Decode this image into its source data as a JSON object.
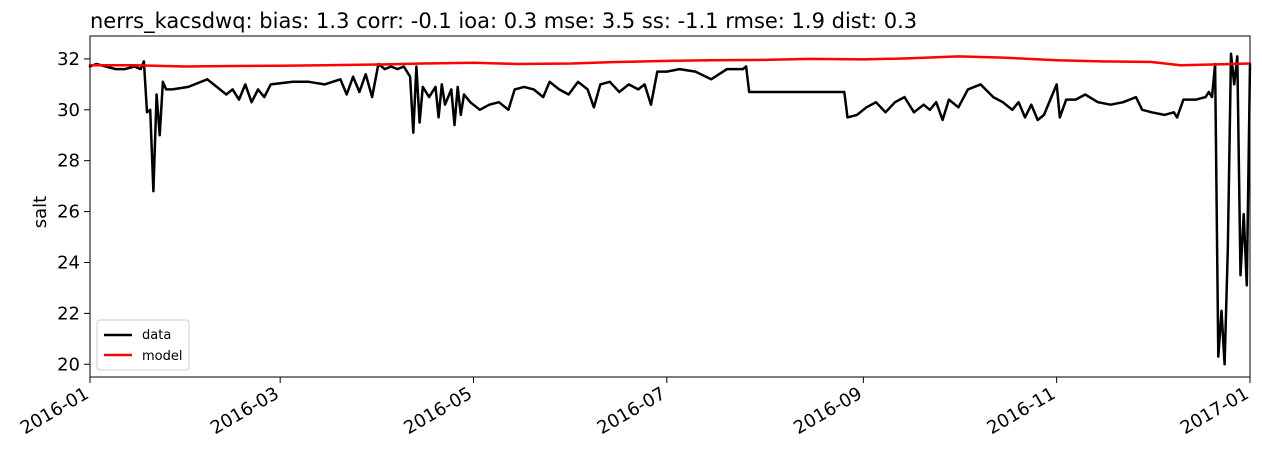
{
  "chart_data": {
    "type": "line",
    "title": "nerrs_kacsdwq: bias: 1.3  corr: -0.1  ioa: 0.3  mse: 3.5  ss: -1.1  rmse: 1.9  dist: 0.3",
    "xlabel": "",
    "ylabel": "salt",
    "xlim": [
      "2016-01-01",
      "2017-01-01"
    ],
    "ylim": [
      19.5,
      32.9
    ],
    "xticks": [
      "2016-01",
      "2016-03",
      "2016-05",
      "2016-07",
      "2016-09",
      "2016-11",
      "2017-01"
    ],
    "yticks": [
      20,
      22,
      24,
      26,
      28,
      30,
      32
    ],
    "grid": false,
    "legend_position": "lower-left",
    "colors": {
      "data": "#000000",
      "model": "#ff0000"
    },
    "series": [
      {
        "name": "data",
        "points": [
          [
            "2016-01-01",
            31.7
          ],
          [
            "2016-01-03",
            31.8
          ],
          [
            "2016-01-06",
            31.7
          ],
          [
            "2016-01-09",
            31.6
          ],
          [
            "2016-01-12",
            31.6
          ],
          [
            "2016-01-15",
            31.7
          ],
          [
            "2016-01-17",
            31.6
          ],
          [
            "2016-01-18",
            31.9
          ],
          [
            "2016-01-19",
            29.9
          ],
          [
            "2016-01-20",
            30.0
          ],
          [
            "2016-01-21",
            26.8
          ],
          [
            "2016-01-22",
            30.6
          ],
          [
            "2016-01-23",
            29.0
          ],
          [
            "2016-01-24",
            31.1
          ],
          [
            "2016-01-25",
            30.8
          ],
          [
            "2016-01-27",
            30.8
          ],
          [
            "2016-02-01",
            30.9
          ],
          [
            "2016-02-03",
            31.0
          ],
          [
            "2016-02-07",
            31.2
          ],
          [
            "2016-02-10",
            30.9
          ],
          [
            "2016-02-13",
            30.6
          ],
          [
            "2016-02-15",
            30.8
          ],
          [
            "2016-02-17",
            30.4
          ],
          [
            "2016-02-19",
            31.0
          ],
          [
            "2016-02-21",
            30.3
          ],
          [
            "2016-02-23",
            30.8
          ],
          [
            "2016-02-25",
            30.5
          ],
          [
            "2016-02-27",
            31.0
          ],
          [
            "2016-03-05",
            31.1
          ],
          [
            "2016-03-10",
            31.1
          ],
          [
            "2016-03-15",
            31.0
          ],
          [
            "2016-03-20",
            31.2
          ],
          [
            "2016-03-22",
            30.6
          ],
          [
            "2016-03-24",
            31.3
          ],
          [
            "2016-03-26",
            30.7
          ],
          [
            "2016-03-28",
            31.4
          ],
          [
            "2016-03-30",
            30.5
          ],
          [
            "2016-04-01",
            31.8
          ],
          [
            "2016-04-03",
            31.6
          ],
          [
            "2016-04-05",
            31.7
          ],
          [
            "2016-04-07",
            31.6
          ],
          [
            "2016-04-09",
            31.7
          ],
          [
            "2016-04-11",
            31.3
          ],
          [
            "2016-04-12",
            29.1
          ],
          [
            "2016-04-13",
            31.7
          ],
          [
            "2016-04-14",
            29.5
          ],
          [
            "2016-04-15",
            30.9
          ],
          [
            "2016-04-17",
            30.5
          ],
          [
            "2016-04-19",
            30.9
          ],
          [
            "2016-04-20",
            29.7
          ],
          [
            "2016-04-21",
            31.0
          ],
          [
            "2016-04-22",
            30.2
          ],
          [
            "2016-04-24",
            30.8
          ],
          [
            "2016-04-25",
            29.4
          ],
          [
            "2016-04-26",
            30.9
          ],
          [
            "2016-04-27",
            29.8
          ],
          [
            "2016-04-28",
            30.6
          ],
          [
            "2016-04-30",
            30.3
          ],
          [
            "2016-05-03",
            30.0
          ],
          [
            "2016-05-06",
            30.2
          ],
          [
            "2016-05-09",
            30.3
          ],
          [
            "2016-05-12",
            30.0
          ],
          [
            "2016-05-14",
            30.8
          ],
          [
            "2016-05-17",
            30.9
          ],
          [
            "2016-05-20",
            30.8
          ],
          [
            "2016-05-23",
            30.5
          ],
          [
            "2016-05-25",
            31.1
          ],
          [
            "2016-05-28",
            30.8
          ],
          [
            "2016-05-31",
            30.6
          ],
          [
            "2016-06-03",
            31.1
          ],
          [
            "2016-06-06",
            30.8
          ],
          [
            "2016-06-08",
            30.1
          ],
          [
            "2016-06-10",
            31.0
          ],
          [
            "2016-06-13",
            31.1
          ],
          [
            "2016-06-16",
            30.7
          ],
          [
            "2016-06-19",
            31.0
          ],
          [
            "2016-06-22",
            30.8
          ],
          [
            "2016-06-24",
            31.0
          ],
          [
            "2016-06-26",
            30.2
          ],
          [
            "2016-06-28",
            31.5
          ],
          [
            "2016-07-01",
            31.5
          ],
          [
            "2016-07-05",
            31.6
          ],
          [
            "2016-07-10",
            31.5
          ],
          [
            "2016-07-15",
            31.2
          ],
          [
            "2016-07-20",
            31.6
          ],
          [
            "2016-07-25",
            31.6
          ],
          [
            "2016-07-26",
            31.7
          ],
          [
            "2016-07-27",
            30.7
          ],
          [
            "2016-08-26",
            30.7
          ],
          [
            "2016-08-27",
            29.7
          ],
          [
            "2016-08-30",
            29.8
          ],
          [
            "2016-09-02",
            30.1
          ],
          [
            "2016-09-05",
            30.3
          ],
          [
            "2016-09-08",
            29.9
          ],
          [
            "2016-09-11",
            30.3
          ],
          [
            "2016-09-14",
            30.5
          ],
          [
            "2016-09-17",
            29.9
          ],
          [
            "2016-09-20",
            30.2
          ],
          [
            "2016-09-22",
            30.0
          ],
          [
            "2016-09-24",
            30.3
          ],
          [
            "2016-09-26",
            29.6
          ],
          [
            "2016-09-28",
            30.4
          ],
          [
            "2016-10-01",
            30.1
          ],
          [
            "2016-10-04",
            30.8
          ],
          [
            "2016-10-08",
            31.0
          ],
          [
            "2016-10-12",
            30.5
          ],
          [
            "2016-10-15",
            30.3
          ],
          [
            "2016-10-18",
            30.0
          ],
          [
            "2016-10-20",
            30.3
          ],
          [
            "2016-10-22",
            29.7
          ],
          [
            "2016-10-24",
            30.2
          ],
          [
            "2016-10-26",
            29.6
          ],
          [
            "2016-10-28",
            29.8
          ],
          [
            "2016-10-30",
            30.4
          ],
          [
            "2016-11-01",
            31.0
          ],
          [
            "2016-11-02",
            29.7
          ],
          [
            "2016-11-04",
            30.4
          ],
          [
            "2016-11-07",
            30.4
          ],
          [
            "2016-11-10",
            30.6
          ],
          [
            "2016-11-14",
            30.3
          ],
          [
            "2016-11-18",
            30.2
          ],
          [
            "2016-11-22",
            30.3
          ],
          [
            "2016-11-26",
            30.5
          ],
          [
            "2016-11-28",
            30.0
          ],
          [
            "2016-12-01",
            29.9
          ],
          [
            "2016-12-05",
            29.8
          ],
          [
            "2016-12-08",
            29.9
          ],
          [
            "2016-12-09",
            29.7
          ],
          [
            "2016-12-11",
            30.4
          ],
          [
            "2016-12-15",
            30.4
          ],
          [
            "2016-12-18",
            30.5
          ],
          [
            "2016-12-19",
            30.7
          ],
          [
            "2016-12-20",
            30.5
          ],
          [
            "2016-12-21",
            31.8
          ],
          [
            "2016-12-22",
            20.3
          ],
          [
            "2016-12-23",
            22.1
          ],
          [
            "2016-12-24",
            20.0
          ],
          [
            "2016-12-25",
            24.5
          ],
          [
            "2016-12-26",
            32.2
          ],
          [
            "2016-12-27",
            31.0
          ],
          [
            "2016-12-28",
            32.1
          ],
          [
            "2016-12-29",
            23.5
          ],
          [
            "2016-12-30",
            25.9
          ],
          [
            "2016-12-31",
            23.1
          ],
          [
            "2017-01-01",
            31.8
          ]
        ]
      },
      {
        "name": "model",
        "points": [
          [
            "2016-01-01",
            31.75
          ],
          [
            "2016-01-15",
            31.75
          ],
          [
            "2016-01-31",
            31.7
          ],
          [
            "2016-02-15",
            31.72
          ],
          [
            "2016-03-01",
            31.73
          ],
          [
            "2016-03-15",
            31.75
          ],
          [
            "2016-04-01",
            31.78
          ],
          [
            "2016-04-15",
            31.82
          ],
          [
            "2016-05-01",
            31.85
          ],
          [
            "2016-05-15",
            31.8
          ],
          [
            "2016-06-01",
            31.82
          ],
          [
            "2016-06-15",
            31.88
          ],
          [
            "2016-07-01",
            31.92
          ],
          [
            "2016-07-15",
            31.95
          ],
          [
            "2016-08-01",
            31.96
          ],
          [
            "2016-08-15",
            32.0
          ],
          [
            "2016-09-01",
            31.98
          ],
          [
            "2016-09-15",
            32.02
          ],
          [
            "2016-10-01",
            32.1
          ],
          [
            "2016-10-15",
            32.05
          ],
          [
            "2016-11-01",
            31.95
          ],
          [
            "2016-11-15",
            31.9
          ],
          [
            "2016-12-01",
            31.88
          ],
          [
            "2016-12-10",
            31.75
          ],
          [
            "2016-12-20",
            31.78
          ],
          [
            "2017-01-01",
            31.82
          ]
        ]
      }
    ]
  }
}
